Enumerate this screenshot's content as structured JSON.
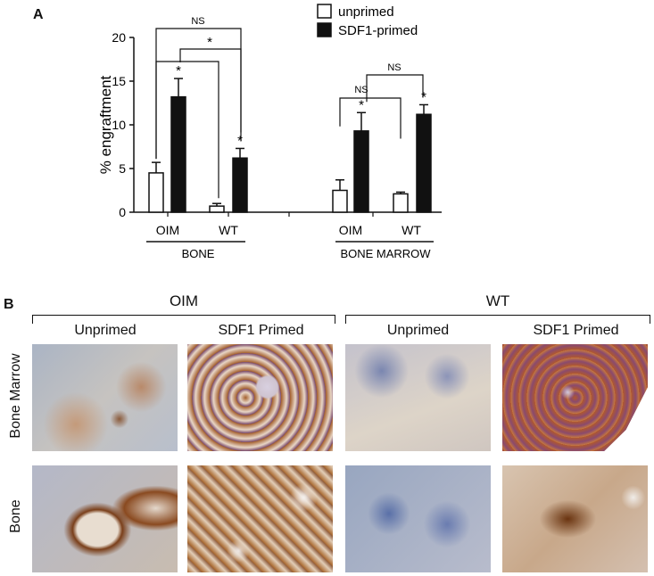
{
  "panel_a_label": "A",
  "panel_b_label": "B",
  "chart_data": {
    "type": "bar",
    "title": "",
    "ylabel": "% engraftment",
    "xlabel": "",
    "ylim": [
      0,
      20
    ],
    "yticks": [
      0,
      5,
      10,
      15,
      20
    ],
    "grid": false,
    "legend_position": "top-right",
    "categories": [
      "OIM",
      "WT",
      "OIM",
      "WT"
    ],
    "groups": [
      {
        "label": "BONE",
        "categories": [
          "OIM",
          "WT"
        ]
      },
      {
        "label": "BONE MARROW",
        "categories": [
          "OIM",
          "WT"
        ]
      }
    ],
    "series": [
      {
        "name": "unprimed",
        "color": "#ffffff",
        "values": [
          4.5,
          0.7,
          2.5,
          2.1
        ],
        "errors": [
          1.2,
          0.3,
          1.2,
          0.2
        ]
      },
      {
        "name": "SDF1-primed",
        "color": "#111111",
        "values": [
          13.2,
          6.2,
          9.3,
          11.2
        ],
        "errors": [
          2.1,
          1.1,
          2.1,
          1.1
        ]
      }
    ],
    "bar_annotations": [
      "*",
      "*",
      "*",
      "*"
    ],
    "comparisons": [
      {
        "text": "NS",
        "from": "BONE OIM unprimed",
        "to": "BONE WT SDF1-primed"
      },
      {
        "text": "*",
        "from": "BONE OIM SDF1-primed",
        "to": "BONE WT SDF1-primed"
      },
      {
        "text": "",
        "from": "BONE OIM unprimed",
        "to": "BONE WT unprimed"
      },
      {
        "text": "NS",
        "from": "BONE MARROW OIM unprimed",
        "to": "BONE MARROW WT unprimed"
      },
      {
        "text": "NS",
        "from": "BONE MARROW OIM SDF1-primed",
        "to": "BONE MARROW WT SDF1-primed"
      }
    ]
  },
  "panel_b": {
    "columns_groups": [
      "OIM",
      "WT"
    ],
    "columns": [
      "Unprimed",
      "SDF1 Primed",
      "Unprimed",
      "SDF1 Primed"
    ],
    "rows": [
      "Bone Marrow",
      "Bone"
    ]
  }
}
